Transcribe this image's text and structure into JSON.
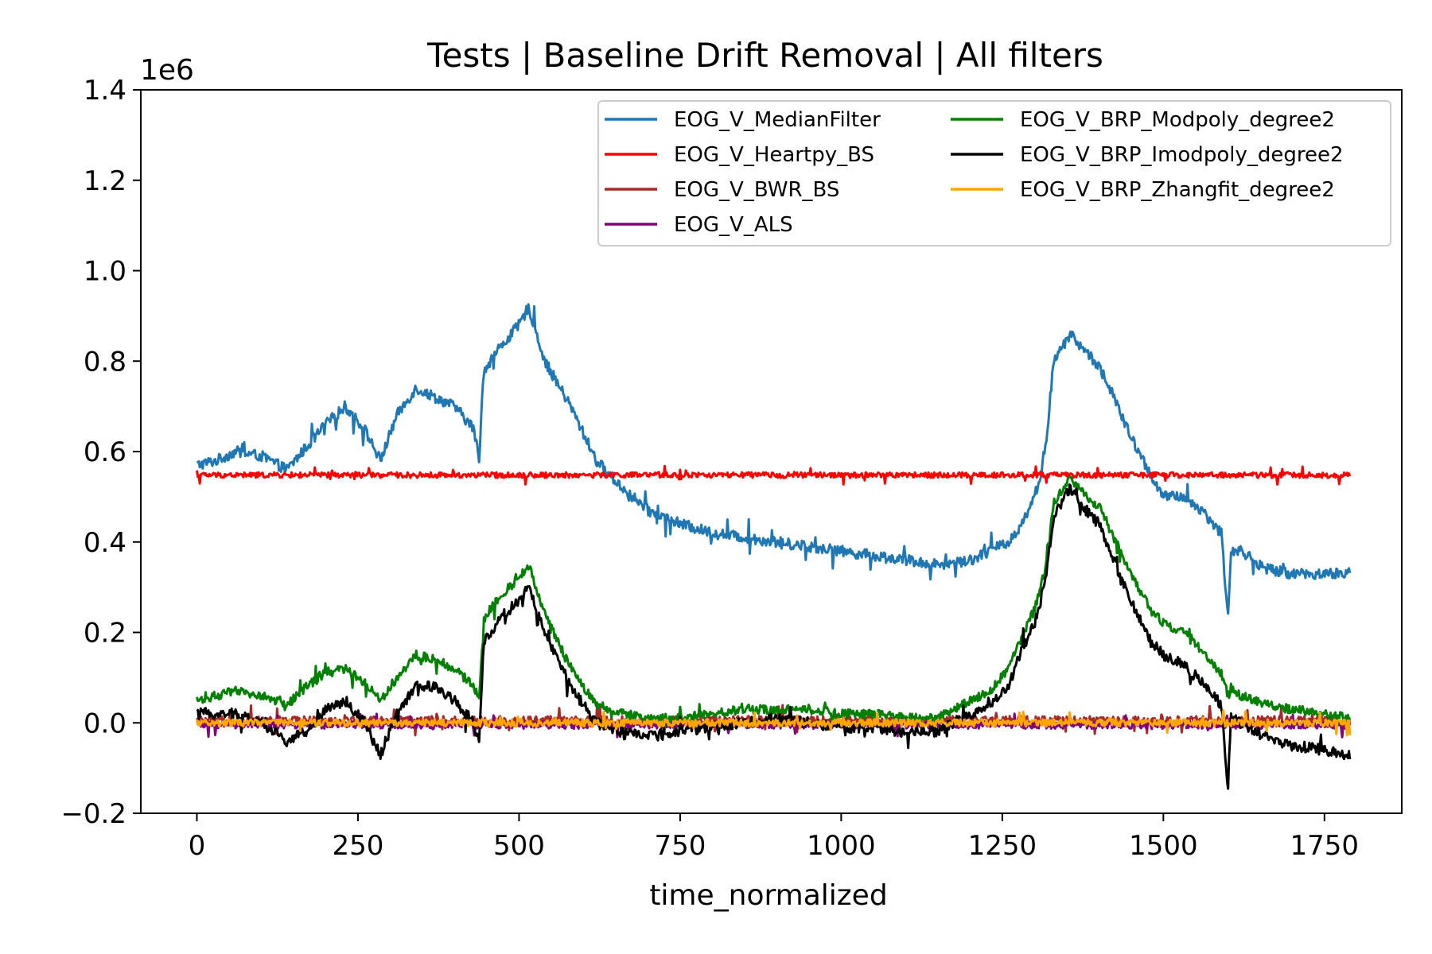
{
  "chart_data": {
    "type": "line",
    "title": "Tests | Baseline Drift Removal | All filters",
    "xlabel": "time_normalized",
    "ylabel": "",
    "y_offset_label": "1e6",
    "xlim": [
      -87,
      1870
    ],
    "ylim": [
      -0.2,
      1.4
    ],
    "x_ticks": [
      0,
      250,
      500,
      750,
      1000,
      1250,
      1500,
      1750
    ],
    "y_ticks": [
      -0.2,
      0.0,
      0.2,
      0.4,
      0.6,
      0.8,
      1.0,
      1.2,
      1.4
    ],
    "y_tick_labels": [
      "−0.2",
      "0.0",
      "0.2",
      "0.4",
      "0.6",
      "0.8",
      "1.0",
      "1.2",
      "1.4"
    ],
    "grid": false,
    "legend_position": "top-right",
    "legend_columns": 2,
    "series": [
      {
        "name": "EOG_V_MedianFilter",
        "color": "#1f77b4",
        "noise": 0.012,
        "x": [
          0,
          30,
          60,
          100,
          140,
          170,
          200,
          230,
          260,
          285,
          310,
          340,
          370,
          400,
          430,
          438,
          445,
          470,
          500,
          515,
          540,
          580,
          620,
          660,
          700,
          750,
          800,
          850,
          900,
          950,
          1000,
          1050,
          1100,
          1150,
          1200,
          1230,
          1260,
          1280,
          1300,
          1315,
          1330,
          1355,
          1380,
          1400,
          1420,
          1450,
          1480,
          1500,
          1530,
          1560,
          1590,
          1600,
          1605,
          1620,
          1660,
          1700,
          1750,
          1790
        ],
        "y": [
          0.57,
          0.58,
          0.6,
          0.59,
          0.56,
          0.61,
          0.66,
          0.7,
          0.65,
          0.58,
          0.68,
          0.74,
          0.72,
          0.7,
          0.65,
          0.58,
          0.78,
          0.83,
          0.88,
          0.92,
          0.8,
          0.7,
          0.58,
          0.52,
          0.47,
          0.44,
          0.42,
          0.41,
          0.4,
          0.39,
          0.38,
          0.37,
          0.36,
          0.35,
          0.36,
          0.38,
          0.4,
          0.44,
          0.5,
          0.58,
          0.8,
          0.86,
          0.82,
          0.79,
          0.73,
          0.63,
          0.55,
          0.5,
          0.5,
          0.47,
          0.42,
          0.23,
          0.38,
          0.38,
          0.34,
          0.33,
          0.33,
          0.33
        ]
      },
      {
        "name": "EOG_V_Heartpy_BS",
        "color": "#ff0000",
        "noise": 0.006,
        "x": [
          0,
          1790
        ],
        "y": [
          0.548,
          0.548
        ]
      },
      {
        "name": "EOG_V_BWR_BS",
        "color": "#a52a2a",
        "noise": 0.01,
        "x": [
          0,
          1790
        ],
        "y": [
          0.005,
          0.005
        ]
      },
      {
        "name": "EOG_V_ALS",
        "color": "#800080",
        "noise": 0.008,
        "x": [
          0,
          1790
        ],
        "y": [
          -0.005,
          -0.005
        ]
      },
      {
        "name": "EOG_V_BRP_Modpoly_degree2",
        "color": "#008000",
        "noise": 0.01,
        "x": [
          0,
          30,
          60,
          100,
          140,
          170,
          200,
          230,
          260,
          285,
          310,
          340,
          370,
          400,
          430,
          438,
          445,
          470,
          500,
          515,
          540,
          580,
          620,
          660,
          700,
          750,
          800,
          850,
          900,
          950,
          1000,
          1050,
          1100,
          1150,
          1200,
          1230,
          1260,
          1280,
          1300,
          1315,
          1330,
          1355,
          1380,
          1400,
          1420,
          1450,
          1480,
          1500,
          1530,
          1560,
          1590,
          1600,
          1605,
          1620,
          1660,
          1700,
          1750,
          1790
        ],
        "y": [
          0.05,
          0.06,
          0.07,
          0.06,
          0.04,
          0.08,
          0.11,
          0.12,
          0.09,
          0.05,
          0.1,
          0.15,
          0.14,
          0.12,
          0.08,
          0.05,
          0.23,
          0.28,
          0.32,
          0.35,
          0.24,
          0.12,
          0.04,
          0.02,
          0.01,
          0.01,
          0.02,
          0.03,
          0.03,
          0.03,
          0.02,
          0.02,
          0.01,
          0.01,
          0.05,
          0.07,
          0.12,
          0.19,
          0.25,
          0.33,
          0.49,
          0.54,
          0.5,
          0.48,
          0.42,
          0.33,
          0.25,
          0.22,
          0.2,
          0.16,
          0.11,
          0.06,
          0.08,
          0.06,
          0.04,
          0.03,
          0.02,
          0.01
        ]
      },
      {
        "name": "EOG_V_BRP_Imodpoly_degree2",
        "color": "#000000",
        "noise": 0.012,
        "x": [
          0,
          30,
          60,
          100,
          140,
          170,
          200,
          230,
          260,
          285,
          310,
          340,
          370,
          400,
          430,
          438,
          445,
          470,
          500,
          515,
          540,
          580,
          620,
          660,
          700,
          750,
          800,
          850,
          900,
          950,
          1000,
          1050,
          1100,
          1150,
          1200,
          1230,
          1260,
          1280,
          1300,
          1315,
          1330,
          1355,
          1380,
          1400,
          1420,
          1450,
          1480,
          1500,
          1530,
          1560,
          1590,
          1600,
          1605,
          1620,
          1660,
          1700,
          1750,
          1790
        ],
        "y": [
          0.02,
          0.02,
          0.02,
          0.0,
          -0.04,
          -0.02,
          0.03,
          0.05,
          0.0,
          -0.07,
          0.02,
          0.08,
          0.08,
          0.05,
          0.0,
          -0.05,
          0.18,
          0.23,
          0.27,
          0.3,
          0.2,
          0.08,
          0.0,
          -0.02,
          -0.03,
          -0.02,
          -0.01,
          0.0,
          0.01,
          0.0,
          -0.01,
          -0.01,
          -0.02,
          -0.02,
          0.02,
          0.04,
          0.08,
          0.16,
          0.22,
          0.3,
          0.46,
          0.52,
          0.47,
          0.44,
          0.37,
          0.27,
          0.18,
          0.15,
          0.13,
          0.09,
          0.04,
          -0.15,
          0.01,
          0.0,
          -0.03,
          -0.05,
          -0.06,
          -0.075
        ]
      },
      {
        "name": "EOG_V_BRP_Zhangfit_degree2",
        "color": "#ffa500",
        "noise": 0.008,
        "x": [
          0,
          1790
        ],
        "y": [
          0.0,
          0.0
        ]
      }
    ]
  }
}
